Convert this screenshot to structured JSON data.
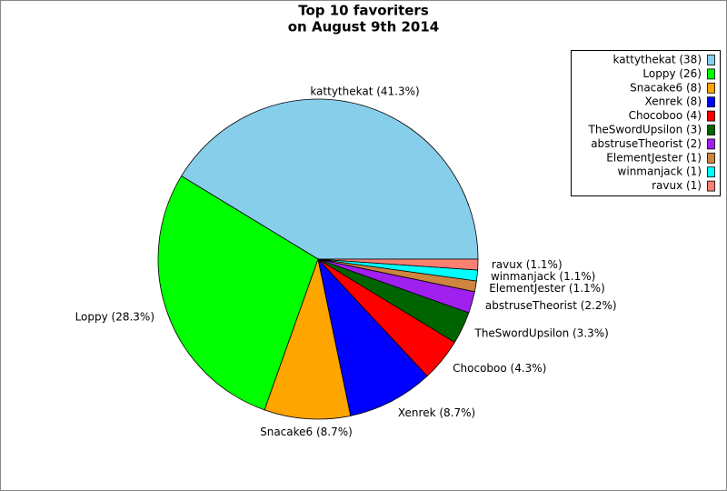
{
  "chart_data": {
    "type": "pie",
    "title": [
      "Top 10 favoriters",
      "on August 9th 2014"
    ],
    "categories": [
      "kattythekat",
      "Loppy",
      "Snacake6",
      "Xenrek",
      "Chocoboo",
      "TheSwordUpsilon",
      "abstruseTheorist",
      "ElementJester",
      "winmanjack",
      "ravux"
    ],
    "values": [
      38,
      26,
      8,
      8,
      4,
      3,
      2,
      1,
      1,
      1
    ],
    "value_labels": [
      "kattythekat (41.3%)",
      "Loppy (28.3%)",
      "Snacake6 (8.7%)",
      "Xenrek (8.7%)",
      "Chocoboo (4.3%)",
      "TheSwordUpsilon (3.3%)",
      "abstruseTheorist (2.2%)",
      "ElementJester (1.1%)",
      "winmanjack (1.1%)",
      "ravux (1.1%)"
    ],
    "legend_labels": [
      "kattythekat (38)",
      "Loppy (26)",
      "Snacake6 (8)",
      "Xenrek (8)",
      "Chocoboo (4)",
      "TheSwordUpsilon (3)",
      "abstruseTheorist (2)",
      "ElementJester (1)",
      "winmanjack (1)",
      "ravux (1)"
    ],
    "colors": [
      "#87ceeb",
      "#00ff00",
      "#ffa500",
      "#0000ff",
      "#ff0000",
      "#006400",
      "#a020f0",
      "#cd853f",
      "#00ffff",
      "#fa8072"
    ],
    "legend": "upper right"
  }
}
